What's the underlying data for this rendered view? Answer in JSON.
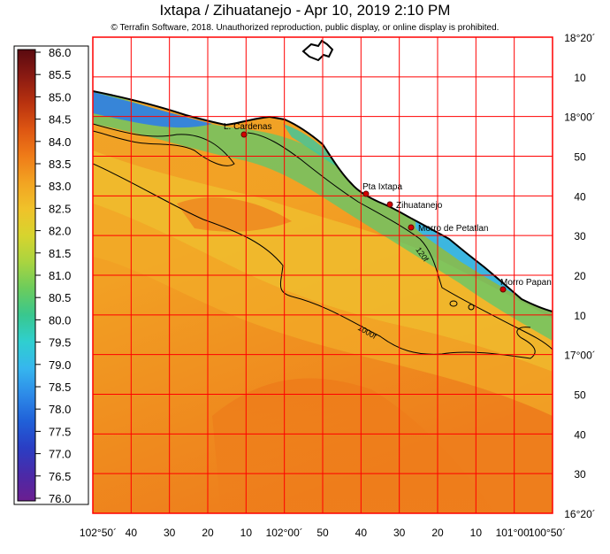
{
  "header": {
    "title": "Ixtapa / Zihuatanejo - Apr 10, 2019 2:10 PM",
    "copyright": "© Terrafin Software,  2018.  Unauthorized reproduction, public display, or online display is prohibited."
  },
  "colorbar": {
    "ticks": [
      "86.0",
      "85.5",
      "85.0",
      "84.5",
      "84.0",
      "83.5",
      "83.0",
      "82.5",
      "82.0",
      "81.5",
      "81.0",
      "80.5",
      "80.0",
      "79.5",
      "79.0",
      "78.5",
      "78.0",
      "77.5",
      "77.0",
      "76.5",
      "76.0"
    ],
    "colors": [
      "#5a0a10",
      "#8a1a12",
      "#b8320f",
      "#dd5512",
      "#ef7b18",
      "#f2a322",
      "#f0c22a",
      "#d7d42e",
      "#a9d440",
      "#6ccc5c",
      "#39c78e",
      "#2fcfcf",
      "#36b6ee",
      "#2d8ae8",
      "#2060d8",
      "#2a3ec4",
      "#4a2aa8",
      "#6b1e90"
    ]
  },
  "map": {
    "lat_labels": [
      "18°20´",
      "10",
      "18°00´",
      "50",
      "40",
      "30",
      "20",
      "10",
      "17°00´",
      "50",
      "40",
      "30",
      "16°20´"
    ],
    "lon_labels": [
      "102°50´",
      "40",
      "30",
      "20",
      "10",
      "102°00´",
      "50",
      "40",
      "30",
      "20",
      "10",
      "101°00´",
      "100°50´"
    ],
    "places": [
      {
        "name": "L. Cardenas"
      },
      {
        "name": "Pta Ixtapa"
      },
      {
        "name": "Zihuatanejo"
      },
      {
        "name": "Morro de Petatlan"
      },
      {
        "name": "Morro Papan"
      }
    ],
    "contours": [
      "120f",
      "1000f"
    ],
    "colors": {
      "grid": "#ff0000",
      "land": "#ffffff",
      "coast": "#000000",
      "place_marker": "#d40000"
    }
  }
}
